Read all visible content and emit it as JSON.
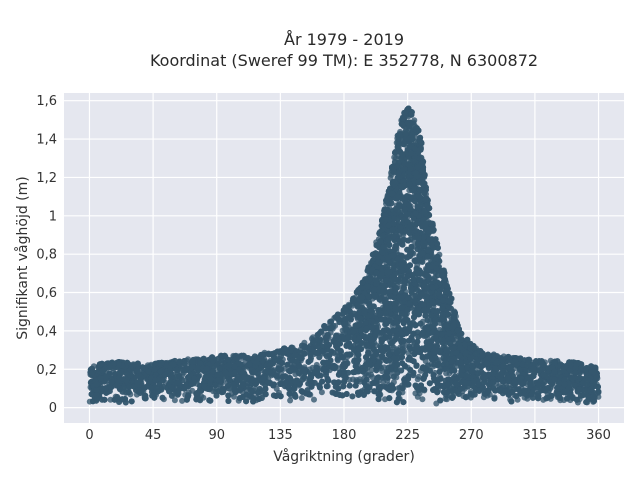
{
  "chart_data": {
    "type": "scatter",
    "title_lines": [
      "År 1979 - 2019",
      "Koordinat (Sweref 99 TM): E 352778, N 6300872"
    ],
    "xlabel": "Vågriktning (grader)",
    "ylabel": "Signifikant våghöjd (m)",
    "xlim": [
      -18,
      378
    ],
    "ylim": [
      -0.08,
      1.64
    ],
    "xticks": [
      0,
      45,
      90,
      135,
      180,
      225,
      270,
      315,
      360
    ],
    "xtick_labels": [
      "0",
      "45",
      "90",
      "135",
      "180",
      "225",
      "270",
      "315",
      "360"
    ],
    "yticks": [
      0,
      0.2,
      0.4,
      0.6,
      0.8,
      1,
      1.2,
      1.4,
      1.6
    ],
    "ytick_labels": [
      "0",
      "0,2",
      "0,4",
      "0,6",
      "0,8",
      "1",
      "1,2",
      "1,4",
      "1,6"
    ],
    "grid": true,
    "marker_color": "#34586e",
    "plot_background": "#e5e7ef",
    "upper_envelope": {
      "x": [
        0,
        20,
        45,
        90,
        120,
        150,
        170,
        185,
        195,
        205,
        212,
        218,
        222,
        226,
        230,
        235,
        240,
        248,
        255,
        262,
        268,
        275,
        290,
        315,
        340,
        360
      ],
      "y": [
        0.22,
        0.24,
        0.23,
        0.27,
        0.28,
        0.33,
        0.45,
        0.55,
        0.68,
        0.92,
        1.18,
        1.42,
        1.55,
        1.57,
        1.52,
        1.38,
        1.05,
        0.8,
        0.6,
        0.4,
        0.36,
        0.3,
        0.27,
        0.25,
        0.24,
        0.22
      ]
    },
    "lower_envelope": {
      "x": [
        0,
        45,
        90,
        135,
        180,
        200,
        225,
        250,
        270,
        315,
        360
      ],
      "y": [
        0.02,
        0.03,
        0.03,
        0.03,
        0.02,
        0.02,
        0.01,
        0.02,
        0.03,
        0.03,
        0.02
      ]
    },
    "n_points_approx": 9000
  }
}
